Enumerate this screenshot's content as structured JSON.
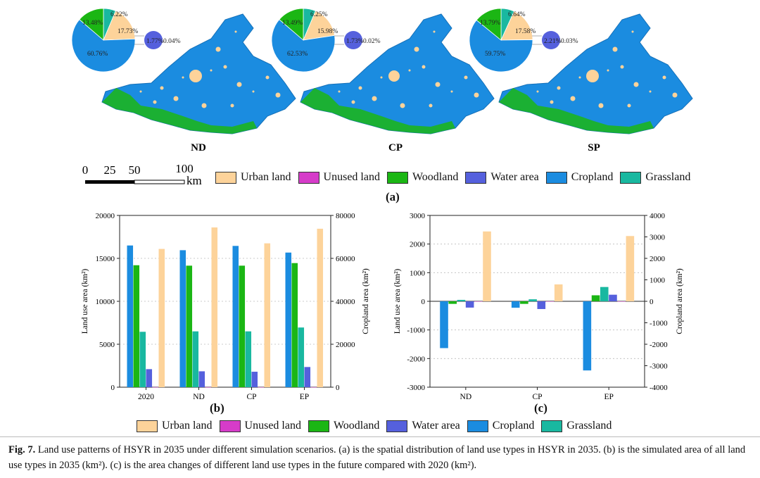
{
  "colors": {
    "urban": "#fdd39a",
    "unused": "#d63cc9",
    "woodland": "#1bb614",
    "water": "#5560dd",
    "cropland": "#1b8ce0",
    "grassland": "#19b8a0"
  },
  "legend": [
    {
      "key": "urban",
      "label": "Urban land"
    },
    {
      "key": "unused",
      "label": "Unused land"
    },
    {
      "key": "woodland",
      "label": "Woodland"
    },
    {
      "key": "water",
      "label": "Water area"
    },
    {
      "key": "cropland",
      "label": "Cropland"
    },
    {
      "key": "grassland",
      "label": "Grassland"
    }
  ],
  "scale_bar": {
    "ticks": [
      "0",
      "25",
      "50",
      "100"
    ],
    "unit": "km"
  },
  "panel_a": {
    "letter": "(a)",
    "maps": [
      {
        "label": "ND",
        "pie": {
          "grassland": "6.22%",
          "woodland": "13.48%",
          "urban": "17.73%",
          "cropland": "60.76%",
          "water": "1.77%",
          "unused": "0.04%"
        }
      },
      {
        "label": "CP",
        "pie": {
          "grassland": "6.25%",
          "woodland": "13.49%",
          "urban": "15.98%",
          "cropland": "62.53%",
          "water": "1.73%",
          "unused": "0.02%"
        }
      },
      {
        "label": "SP",
        "pie": {
          "grassland": "6.64%",
          "woodland": "13.79%",
          "urban": "17.58%",
          "cropland": "59.75%",
          "water": "2.21%",
          "unused": "0.03%"
        }
      }
    ]
  },
  "chart_data": [
    {
      "type": "bar",
      "panel": "(b)",
      "categories": [
        "2020",
        "ND",
        "CP",
        "EP"
      ],
      "ylabel": "Land use area (km²)",
      "y2label": "Cropland area (km²)",
      "ylim": [
        0,
        20000
      ],
      "y2lim": [
        0,
        80000
      ],
      "yticks": [
        "0",
        "5000",
        "10000",
        "15000",
        "20000"
      ],
      "y2ticks": [
        "0",
        "20000",
        "40000",
        "60000",
        "80000"
      ],
      "series": [
        {
          "key": "cropland",
          "name": "Cropland",
          "axis": "right",
          "values": [
            66000,
            63800,
            65800,
            62700
          ]
        },
        {
          "key": "woodland",
          "name": "Woodland",
          "axis": "left",
          "values": [
            14200,
            14150,
            14150,
            14450
          ]
        },
        {
          "key": "grassland",
          "name": "Grassland",
          "axis": "left",
          "values": [
            6450,
            6500,
            6500,
            6950
          ]
        },
        {
          "key": "water",
          "name": "Water area",
          "axis": "left",
          "values": [
            2100,
            1850,
            1800,
            2350
          ]
        },
        {
          "key": "unused",
          "name": "Unused land",
          "axis": "left",
          "values": [
            10,
            10,
            5,
            8
          ]
        },
        {
          "key": "urban",
          "name": "Urban land",
          "axis": "left",
          "values": [
            16100,
            18600,
            16750,
            18450
          ]
        }
      ]
    },
    {
      "type": "bar",
      "panel": "(c)",
      "categories": [
        "ND",
        "CP",
        "EP"
      ],
      "ylabel": "Land use area (km²)",
      "y2label": "Cropland area (km²)",
      "ylim": [
        -3000,
        3000
      ],
      "y2lim": [
        -4000,
        4000
      ],
      "yticks": [
        "-3000",
        "-2000",
        "-1000",
        "0",
        "1000",
        "2000",
        "3000"
      ],
      "y2ticks": [
        "-4000",
        "-3000",
        "-2000",
        "-1000",
        "0",
        "1000",
        "2000",
        "3000",
        "4000"
      ],
      "series": [
        {
          "key": "cropland",
          "name": "Cropland",
          "axis": "right",
          "values": [
            -2180,
            -300,
            -3220
          ]
        },
        {
          "key": "woodland",
          "name": "Woodland",
          "axis": "left",
          "values": [
            -90,
            -90,
            210
          ]
        },
        {
          "key": "grassland",
          "name": "Grassland",
          "axis": "left",
          "values": [
            50,
            70,
            500
          ]
        },
        {
          "key": "water",
          "name": "Water area",
          "axis": "left",
          "values": [
            -220,
            -270,
            230
          ]
        },
        {
          "key": "unused",
          "name": "Unused land",
          "axis": "left",
          "values": [
            -5,
            -10,
            -5
          ]
        },
        {
          "key": "urban",
          "name": "Urban land",
          "axis": "left",
          "values": [
            2440,
            590,
            2280
          ]
        }
      ]
    }
  ],
  "caption": {
    "fig": "Fig. 7.",
    "text": "Land use patterns of HSYR in 2035 under different simulation scenarios. (a) is the spatial distribution of land use types in HSYR in 2035. (b) is the simulated area of all land use types in 2035 (km²). (c) is the area changes of different land use types in the future compared with 2020 (km²)."
  }
}
